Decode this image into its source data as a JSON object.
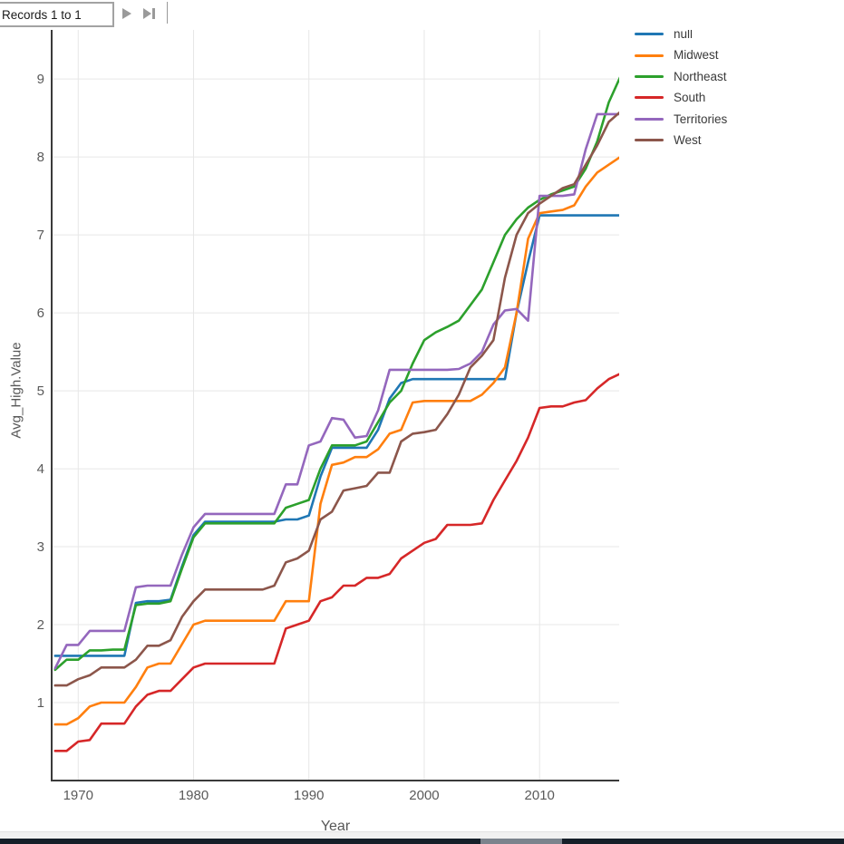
{
  "toolbar": {
    "records_value": "Records 1 to 1"
  },
  "legend": {
    "position": "top-right"
  },
  "taskbar": {
    "bar_color": "#151f29",
    "highlight_color": "#7b838d"
  },
  "chart_data": {
    "type": "line",
    "title": "",
    "xlabel": "Year",
    "ylabel": "Avg_High.Value",
    "xlim": [
      1967.7,
      2016.9
    ],
    "ylim": [
      0,
      9.63
    ],
    "x_ticks": [
      1970,
      1980,
      1990,
      2000,
      2010
    ],
    "y_ticks": [
      1,
      2,
      3,
      4,
      5,
      6,
      7,
      8,
      9
    ],
    "grid": true,
    "grid_color": "#e7e7e7",
    "axis_color": "#3a3a3a",
    "tick_label_color": "#5a5a5a",
    "legend_position": "top-right",
    "x": [
      1968,
      1969,
      1970,
      1971,
      1972,
      1973,
      1974,
      1975,
      1976,
      1977,
      1978,
      1979,
      1980,
      1981,
      1982,
      1983,
      1984,
      1985,
      1986,
      1987,
      1988,
      1989,
      1990,
      1991,
      1992,
      1993,
      1994,
      1995,
      1996,
      1997,
      1998,
      1999,
      2000,
      2001,
      2002,
      2003,
      2004,
      2005,
      2006,
      2007,
      2008,
      2009,
      2010,
      2011,
      2012,
      2013,
      2014,
      2015,
      2016,
      2017
    ],
    "series": [
      {
        "name": "null",
        "color": "#1f77b4",
        "values": [
          1.6,
          1.6,
          1.6,
          1.6,
          1.6,
          1.6,
          1.6,
          2.28,
          2.3,
          2.3,
          2.32,
          2.75,
          3.15,
          3.32,
          3.32,
          3.32,
          3.32,
          3.32,
          3.32,
          3.32,
          3.35,
          3.35,
          3.4,
          3.9,
          4.27,
          4.27,
          4.27,
          4.27,
          4.5,
          4.9,
          5.1,
          5.15,
          5.15,
          5.15,
          5.15,
          5.15,
          5.15,
          5.15,
          5.15,
          5.15,
          6.0,
          6.65,
          7.25,
          7.25,
          7.25,
          7.25,
          7.25,
          7.25,
          7.25,
          7.25
        ]
      },
      {
        "name": "Midwest",
        "color": "#ff7f0e",
        "values": [
          0.72,
          0.72,
          0.8,
          0.95,
          1.0,
          1.0,
          1.0,
          1.2,
          1.45,
          1.5,
          1.5,
          1.75,
          2.0,
          2.05,
          2.05,
          2.05,
          2.05,
          2.05,
          2.05,
          2.05,
          2.3,
          2.3,
          2.3,
          3.55,
          4.05,
          4.08,
          4.15,
          4.15,
          4.25,
          4.45,
          4.5,
          4.85,
          4.87,
          4.87,
          4.87,
          4.87,
          4.87,
          4.95,
          5.1,
          5.3,
          6.0,
          6.95,
          7.28,
          7.3,
          7.32,
          7.38,
          7.62,
          7.8,
          7.9,
          8.0
        ]
      },
      {
        "name": "Northeast",
        "color": "#2ca02c",
        "values": [
          1.42,
          1.55,
          1.55,
          1.67,
          1.67,
          1.68,
          1.68,
          2.25,
          2.27,
          2.27,
          2.3,
          2.72,
          3.12,
          3.3,
          3.3,
          3.3,
          3.3,
          3.3,
          3.3,
          3.3,
          3.5,
          3.55,
          3.6,
          4.0,
          4.3,
          4.3,
          4.3,
          4.35,
          4.6,
          4.85,
          5.0,
          5.35,
          5.65,
          5.75,
          5.82,
          5.9,
          6.1,
          6.3,
          6.65,
          7.0,
          7.2,
          7.35,
          7.45,
          7.52,
          7.57,
          7.62,
          7.85,
          8.2,
          8.7,
          9.03
        ]
      },
      {
        "name": "South",
        "color": "#d62728",
        "values": [
          0.38,
          0.38,
          0.5,
          0.52,
          0.73,
          0.73,
          0.73,
          0.95,
          1.1,
          1.15,
          1.15,
          1.3,
          1.45,
          1.5,
          1.5,
          1.5,
          1.5,
          1.5,
          1.5,
          1.5,
          1.95,
          2.0,
          2.05,
          2.3,
          2.35,
          2.5,
          2.5,
          2.6,
          2.6,
          2.65,
          2.85,
          2.95,
          3.05,
          3.1,
          3.28,
          3.28,
          3.28,
          3.3,
          3.6,
          3.85,
          4.1,
          4.4,
          4.78,
          4.8,
          4.8,
          4.85,
          4.88,
          5.03,
          5.15,
          5.22
        ]
      },
      {
        "name": "Territories",
        "color": "#9467bd",
        "values": [
          1.44,
          1.74,
          1.74,
          1.92,
          1.92,
          1.92,
          1.92,
          2.48,
          2.5,
          2.5,
          2.5,
          2.9,
          3.25,
          3.42,
          3.42,
          3.42,
          3.42,
          3.42,
          3.42,
          3.42,
          3.8,
          3.8,
          4.3,
          4.35,
          4.65,
          4.63,
          4.4,
          4.42,
          4.75,
          5.27,
          5.27,
          5.27,
          5.27,
          5.27,
          5.27,
          5.28,
          5.35,
          5.5,
          5.85,
          6.03,
          6.05,
          5.9,
          7.5,
          7.5,
          7.5,
          7.52,
          8.1,
          8.55,
          8.55,
          8.55
        ]
      },
      {
        "name": "West",
        "color": "#8c564b",
        "values": [
          1.22,
          1.22,
          1.3,
          1.35,
          1.45,
          1.45,
          1.45,
          1.55,
          1.73,
          1.73,
          1.8,
          2.1,
          2.3,
          2.45,
          2.45,
          2.45,
          2.45,
          2.45,
          2.45,
          2.5,
          2.8,
          2.85,
          2.95,
          3.35,
          3.45,
          3.72,
          3.75,
          3.78,
          3.95,
          3.95,
          4.35,
          4.45,
          4.47,
          4.5,
          4.7,
          4.95,
          5.3,
          5.45,
          5.65,
          6.45,
          7.0,
          7.28,
          7.4,
          7.5,
          7.6,
          7.65,
          7.9,
          8.15,
          8.45,
          8.58
        ]
      }
    ]
  }
}
